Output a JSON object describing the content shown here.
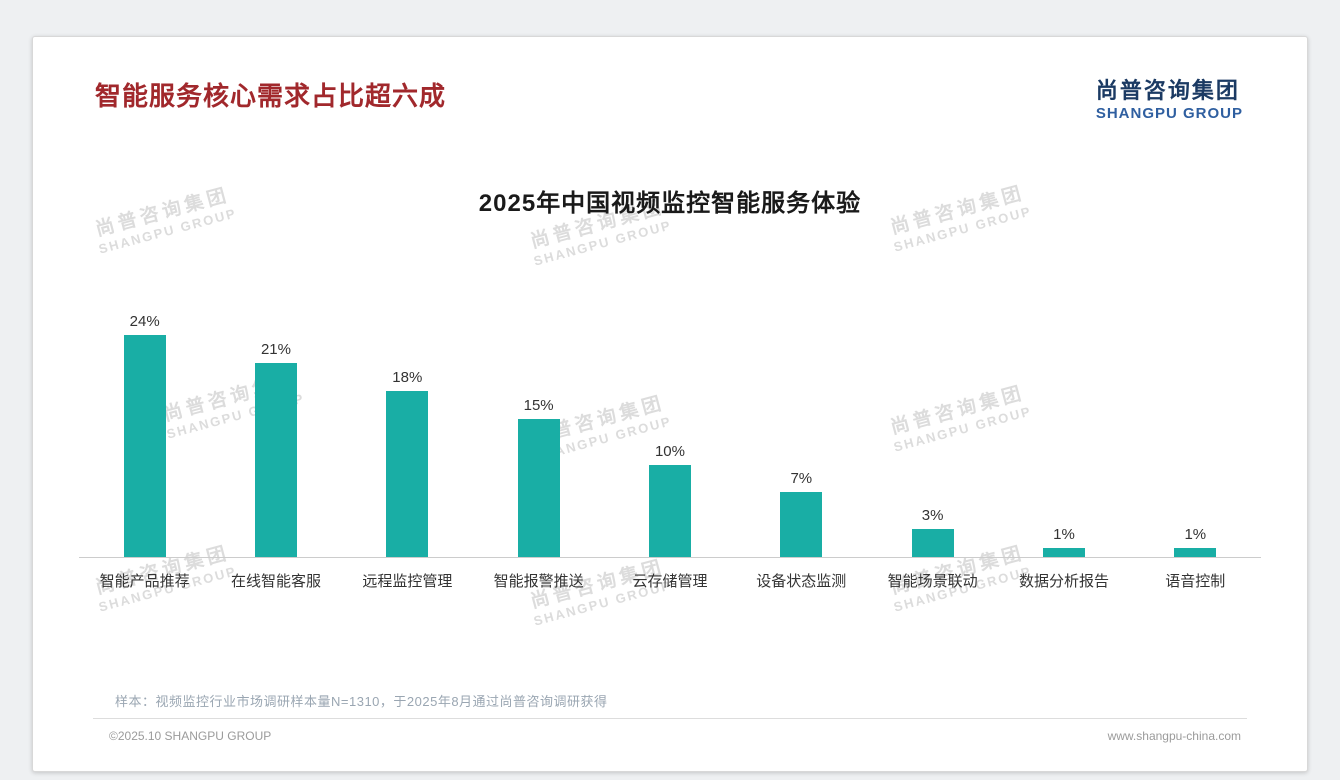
{
  "page": {
    "title": "智能服务核心需求占比超六成",
    "logo": {
      "cn": "尚普咨询集团",
      "en": "SHANGPU GROUP"
    },
    "watermark": {
      "cn": "尚普咨询集团",
      "en": "SHANGPU GROUP"
    },
    "footnote": "样本：视频监控行业市场调研样本量N=1310，于2025年8月通过尚普咨询调研获得",
    "footer_left": "©2025.10 SHANGPU GROUP",
    "footer_right": "www.shangpu-china.com",
    "colors": {
      "title_red": "#a1282c",
      "logo_navy": "#1b3a63",
      "logo_blue": "#2f5fa0"
    }
  },
  "chart_data": {
    "type": "bar",
    "title": "2025年中国视频监控智能服务体验",
    "categories": [
      "智能产品推荐",
      "在线智能客服",
      "远程监控管理",
      "智能报警推送",
      "云存储管理",
      "设备状态监测",
      "智能场景联动",
      "数据分析报告",
      "语音控制"
    ],
    "values": [
      24,
      21,
      18,
      15,
      10,
      7,
      3,
      1,
      1
    ],
    "value_labels": [
      "24%",
      "21%",
      "18%",
      "15%",
      "10%",
      "7%",
      "3%",
      "1%",
      "1%"
    ],
    "bar_color": "#19aea5",
    "xlabel": "",
    "ylabel": "",
    "ylim": [
      0,
      26
    ],
    "grid": false,
    "legend": false
  }
}
